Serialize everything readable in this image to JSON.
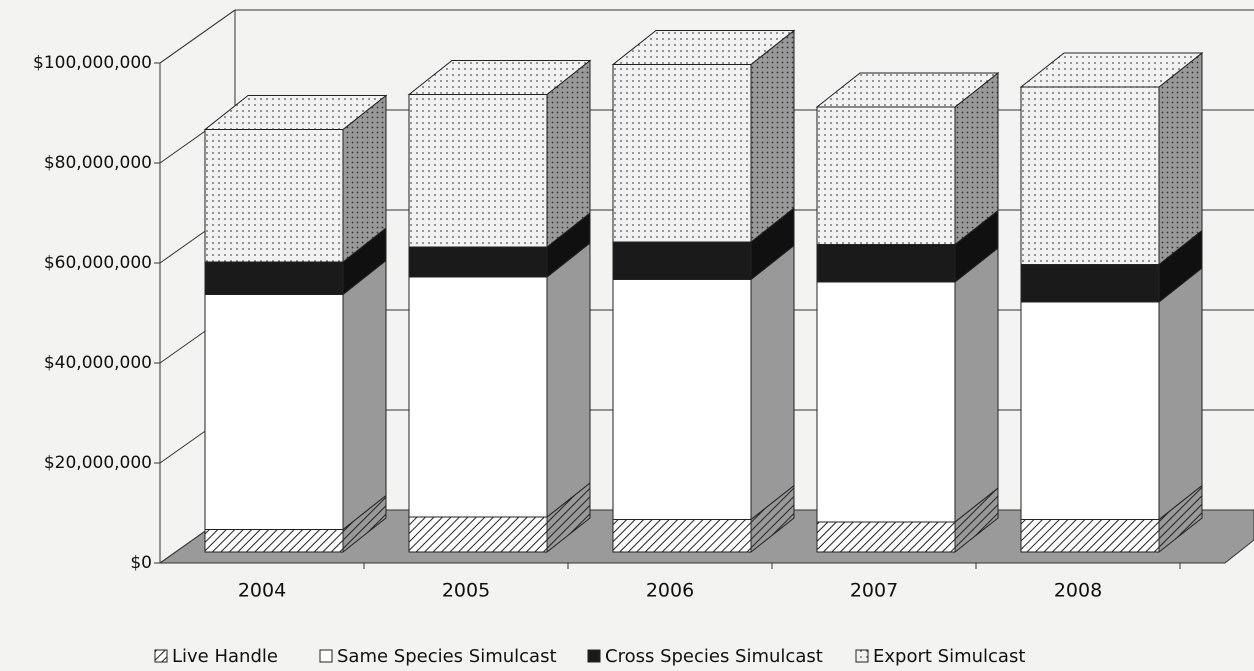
{
  "chart_data": {
    "type": "bar3d_stacked",
    "categories": [
      "2004",
      "2005",
      "2006",
      "2007",
      "2008"
    ],
    "series": [
      {
        "name": "Live Handle",
        "color": "#ffffff",
        "pattern": "hatch",
        "values": [
          4500000,
          7000000,
          6500000,
          6000000,
          6500000
        ]
      },
      {
        "name": "Same Species Simulcast",
        "color": "#ffffff",
        "values": [
          47000000,
          48000000,
          48000000,
          48000000,
          43500000
        ]
      },
      {
        "name": "Cross Species Simulcast",
        "color": "#1a1a1a",
        "values": [
          6500000,
          6000000,
          7500000,
          7500000,
          7500000
        ]
      },
      {
        "name": "Export Simulcast",
        "color": "#f2f2f2",
        "pattern": "dots",
        "values": [
          26500000,
          30500000,
          35500000,
          27500000,
          35500000
        ]
      }
    ],
    "ylim": [
      0,
      100000000
    ],
    "yticks": [
      {
        "value": 0,
        "label": "$0"
      },
      {
        "value": 20000000,
        "label": "$20,000,000"
      },
      {
        "value": 40000000,
        "label": "$40,000,000"
      },
      {
        "value": 60000000,
        "label": "$60,000,000"
      },
      {
        "value": 80000000,
        "label": "$80,000,000"
      },
      {
        "value": 100000000,
        "label": "$100,000,000"
      }
    ],
    "grid": true,
    "legend": "bottom"
  }
}
